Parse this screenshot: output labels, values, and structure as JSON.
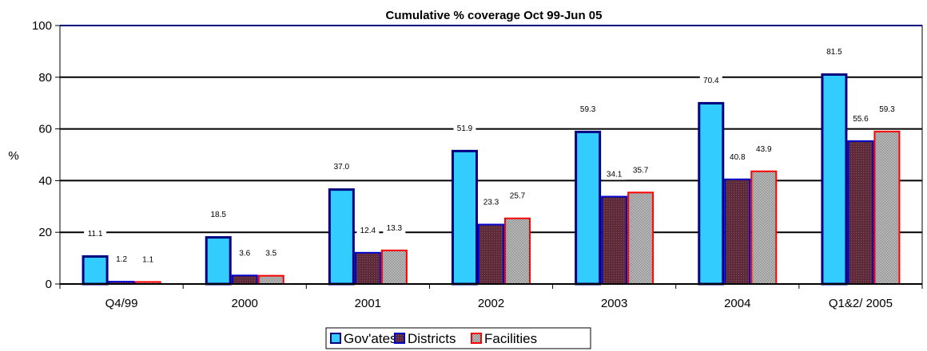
{
  "chart_data": {
    "type": "bar",
    "title": "Cumulative % coverage Oct 99-Jun 05",
    "xlabel": "",
    "ylabel": "%",
    "ylim": [
      0,
      100
    ],
    "yticks": [
      0,
      20,
      40,
      60,
      80,
      100
    ],
    "grid": true,
    "legend_position": "bottom",
    "categories": [
      "Q4/99",
      "2000",
      "2001",
      "2002",
      "2003",
      "2004",
      "Q1&2/ 2005"
    ],
    "series": [
      {
        "name": "Gov'ates",
        "values": [
          11.1,
          18.5,
          37.0,
          51.9,
          59.3,
          70.4,
          81.5
        ],
        "labels": [
          "11.1",
          "18.5",
          "37.0",
          "51.9",
          "59.3",
          "70.4",
          "81.5"
        ],
        "fill": "#33CCFF",
        "border": "#000080",
        "pattern": "solid"
      },
      {
        "name": "Districts",
        "values": [
          1.2,
          3.6,
          12.4,
          23.3,
          34.1,
          40.8,
          55.6
        ],
        "labels": [
          "1.2",
          "3.6",
          "12.4",
          "23.3",
          "34.1",
          "40.8",
          "55.6"
        ],
        "fill": "#5C2A38",
        "border": "#0000CC",
        "pattern": "dots"
      },
      {
        "name": "Facilities",
        "values": [
          1.1,
          3.5,
          13.3,
          25.7,
          35.7,
          43.9,
          59.3
        ],
        "labels": [
          "1.1",
          "3.5",
          "13.3",
          "25.7",
          "35.7",
          "43.9",
          "59.3"
        ],
        "fill": "#9A9A9A",
        "border": "#FF0000",
        "pattern": "checker"
      }
    ]
  }
}
